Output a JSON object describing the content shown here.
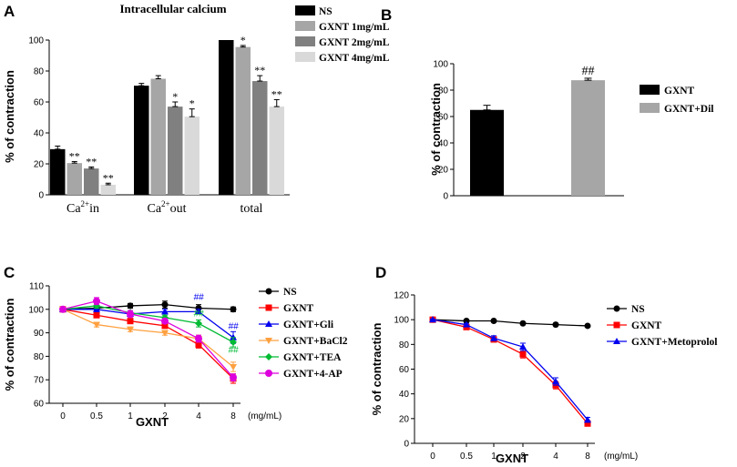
{
  "panels": {
    "a": "A",
    "b": "B",
    "c": "C",
    "d": "D"
  },
  "chart_data": [
    {
      "id": "A",
      "type": "bar",
      "title": "Intracellular calcium",
      "ylabel": "% of contraction",
      "xlabel": "",
      "ylim": [
        0,
        100
      ],
      "yticks": [
        0,
        20,
        40,
        60,
        80,
        100
      ],
      "categories": [
        {
          "pre": "Ca",
          "sup": "2+",
          "post": "in"
        },
        {
          "pre": "Ca",
          "sup": "2+",
          "post": "out"
        },
        {
          "pre": "total",
          "sup": "",
          "post": ""
        }
      ],
      "series": [
        {
          "name": "NS",
          "color": "#000000",
          "values": [
            29.5,
            70.5,
            100
          ],
          "errors": [
            2,
            1.5,
            0
          ],
          "marks": [
            "",
            "",
            ""
          ]
        },
        {
          "name": "GXNT 1mg/mL",
          "color": "#a6a6a6",
          "values": [
            20.5,
            75,
            95.5
          ],
          "errors": [
            1,
            2,
            1
          ],
          "marks": [
            "**",
            "",
            "*"
          ]
        },
        {
          "name": "GXNT 2mg/mL",
          "color": "#808080",
          "values": [
            17,
            57,
            73.5
          ],
          "errors": [
            1,
            3,
            3.5
          ],
          "marks": [
            "**",
            "*",
            "**"
          ]
        },
        {
          "name": "GXNT 4mg/mL",
          "color": "#d9d9d9",
          "values": [
            6.5,
            50.5,
            57
          ],
          "errors": [
            1,
            5,
            4.5
          ],
          "marks": [
            "**",
            "*",
            "**"
          ]
        }
      ]
    },
    {
      "id": "B",
      "type": "bar",
      "title": "",
      "ylabel": "% of contraction",
      "xlabel": "",
      "ylim": [
        0,
        100
      ],
      "yticks": [
        0,
        20,
        40,
        60,
        80,
        100
      ],
      "series": [
        {
          "name": "GXNT",
          "color": "#000000",
          "value": 65,
          "error": 3.5,
          "mark": ""
        },
        {
          "name": "GXNT+Dil",
          "color": "#a6a6a6",
          "value": 87.5,
          "error": 1.5,
          "mark": "##"
        }
      ]
    },
    {
      "id": "C",
      "type": "line",
      "xlabel": "GXNT",
      "xunit": "(mg/mL)",
      "ylabel": "% of contraction",
      "x": [
        "0",
        "0.5",
        "1",
        "2",
        "4",
        "8"
      ],
      "ylim": [
        60,
        110
      ],
      "yticks": [
        60,
        70,
        80,
        90,
        100,
        110
      ],
      "series": [
        {
          "name": "NS",
          "color": "#000000",
          "marker": "circle",
          "values": [
            100,
            100.5,
            101.5,
            102,
            100.5,
            100
          ],
          "errors": [
            0.5,
            1,
            1,
            1.5,
            1.5,
            1
          ]
        },
        {
          "name": "GXNT",
          "color": "#ff0000",
          "marker": "square",
          "values": [
            100,
            97.5,
            95,
            93,
            85,
            70.5
          ],
          "errors": [
            0.5,
            1,
            1,
            1,
            1.5,
            2
          ]
        },
        {
          "name": "GXNT+Gli",
          "color": "#0000ee",
          "marker": "triangle",
          "values": [
            100,
            100,
            98,
            99,
            99,
            88
          ],
          "errors": [
            0.5,
            1,
            1,
            1,
            1,
            2.5
          ]
        },
        {
          "name": "GXNT+BaCl2",
          "color": "#ffa040",
          "marker": "tri-down",
          "values": [
            100,
            93.5,
            91.5,
            90,
            87.5,
            75.5
          ],
          "errors": [
            0.5,
            1,
            1,
            1,
            1.5,
            2
          ]
        },
        {
          "name": "GXNT+TEA",
          "color": "#00bb33",
          "marker": "diamond",
          "values": [
            100,
            101.5,
            98.5,
            96.5,
            94,
            86
          ],
          "errors": [
            0.5,
            1,
            1,
            1,
            1.5,
            2
          ]
        },
        {
          "name": "GXNT+4-AP",
          "color": "#dd00dd",
          "marker": "hexagon",
          "values": [
            100,
            103.5,
            98,
            95,
            87.5,
            71
          ],
          "errors": [
            0.5,
            1.5,
            1.5,
            1,
            1.5,
            1.5
          ]
        }
      ],
      "annotations": [
        {
          "text": "##",
          "color": "#0000ee",
          "x": "4",
          "y": 104
        },
        {
          "text": "##",
          "color": "#00bb33",
          "x": "4",
          "y": 97
        },
        {
          "text": "##",
          "color": "#0000ee",
          "x": "8",
          "y": 91.5
        },
        {
          "text": "##",
          "color": "#00bb33",
          "x": "8",
          "y": 81.5
        }
      ]
    },
    {
      "id": "D",
      "type": "line",
      "xlabel": "GXNT",
      "xunit": "(mg/mL)",
      "ylabel": "% of contraction",
      "x": [
        "0",
        "0.5",
        "1",
        "2",
        "4",
        "8"
      ],
      "ylim": [
        0,
        120
      ],
      "yticks": [
        0,
        20,
        40,
        60,
        80,
        100,
        120
      ],
      "series": [
        {
          "name": "NS",
          "color": "#000000",
          "marker": "circle",
          "values": [
            100,
            99,
            99,
            97,
            96,
            95
          ],
          "errors": [
            0.5,
            0.5,
            0.5,
            0.5,
            1,
            0.5
          ]
        },
        {
          "name": "GXNT",
          "color": "#ff0000",
          "marker": "square",
          "values": [
            100,
            94,
            84,
            72,
            47,
            16
          ],
          "errors": [
            0.5,
            1,
            2,
            3,
            3,
            2
          ]
        },
        {
          "name": "GXNT+Metoprolol",
          "color": "#0000ee",
          "marker": "triangle",
          "values": [
            100,
            96,
            85,
            78,
            50,
            19
          ],
          "errors": [
            0.5,
            1,
            2,
            3,
            3,
            2
          ]
        }
      ]
    }
  ]
}
